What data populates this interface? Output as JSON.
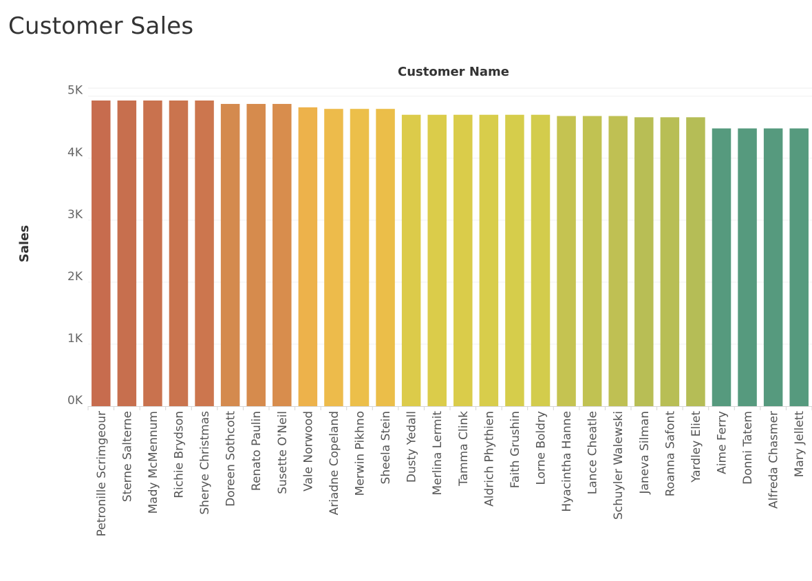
{
  "title": "Customer Sales",
  "chart_data": {
    "type": "bar",
    "title": "Customer Sales",
    "xlabel": "Customer Name",
    "ylabel": "Sales",
    "ylim": [
      0,
      5000
    ],
    "yticks": [
      0,
      1000,
      2000,
      3000,
      4000,
      5000
    ],
    "ytick_labels": [
      "0K",
      "1K",
      "2K",
      "3K",
      "4K",
      "5K"
    ],
    "grid": true,
    "categories": [
      "Petronille Scrimgeour",
      "Sterne Salterne",
      "Mady McMennum",
      "Richie Brydson",
      "Sherye Christmas",
      "Doreen Sothcott",
      "Renato Paulin",
      "Susette O'Neil",
      "Vale Norwood",
      "Ariadne Copeland",
      "Merwin Pikhno",
      "Sheela Stein",
      "Dusty Yedall",
      "Merlina Lermit",
      "Tamma Clink",
      "Aldrich Phythien",
      "Faith Grushin",
      "Lorne Boldry",
      "Hyacintha Hanne",
      "Lance Cheatle",
      "Schuyler Walewski",
      "Janeva Silman",
      "Roanna Safont",
      "Yardley Eliet",
      "Aime Ferry",
      "Donni Tatem",
      "Alfreda Chasmer",
      "Mary Jellett"
    ],
    "values": [
      4930,
      4930,
      4930,
      4930,
      4930,
      4875,
      4875,
      4875,
      4820,
      4795,
      4795,
      4795,
      4700,
      4700,
      4700,
      4700,
      4700,
      4700,
      4680,
      4680,
      4680,
      4660,
      4660,
      4660,
      4480,
      4480,
      4480,
      4480
    ],
    "colors": [
      "#c76c4e",
      "#c76f4e",
      "#c9724e",
      "#ca744e",
      "#cc764e",
      "#d48a4e",
      "#d68b4d",
      "#d88d4d",
      "#edb24b",
      "#edbb4b",
      "#ecbf4a",
      "#ebbe49",
      "#dccb4a",
      "#dbcc4a",
      "#dacc4a",
      "#d8cd4b",
      "#d6cd4b",
      "#d3cc4c",
      "#c5c351",
      "#c1c252",
      "#bfc053",
      "#b8be55",
      "#b8be55",
      "#b5bd56",
      "#569a7e",
      "#569a7e",
      "#569a7e",
      "#569a7e"
    ]
  }
}
